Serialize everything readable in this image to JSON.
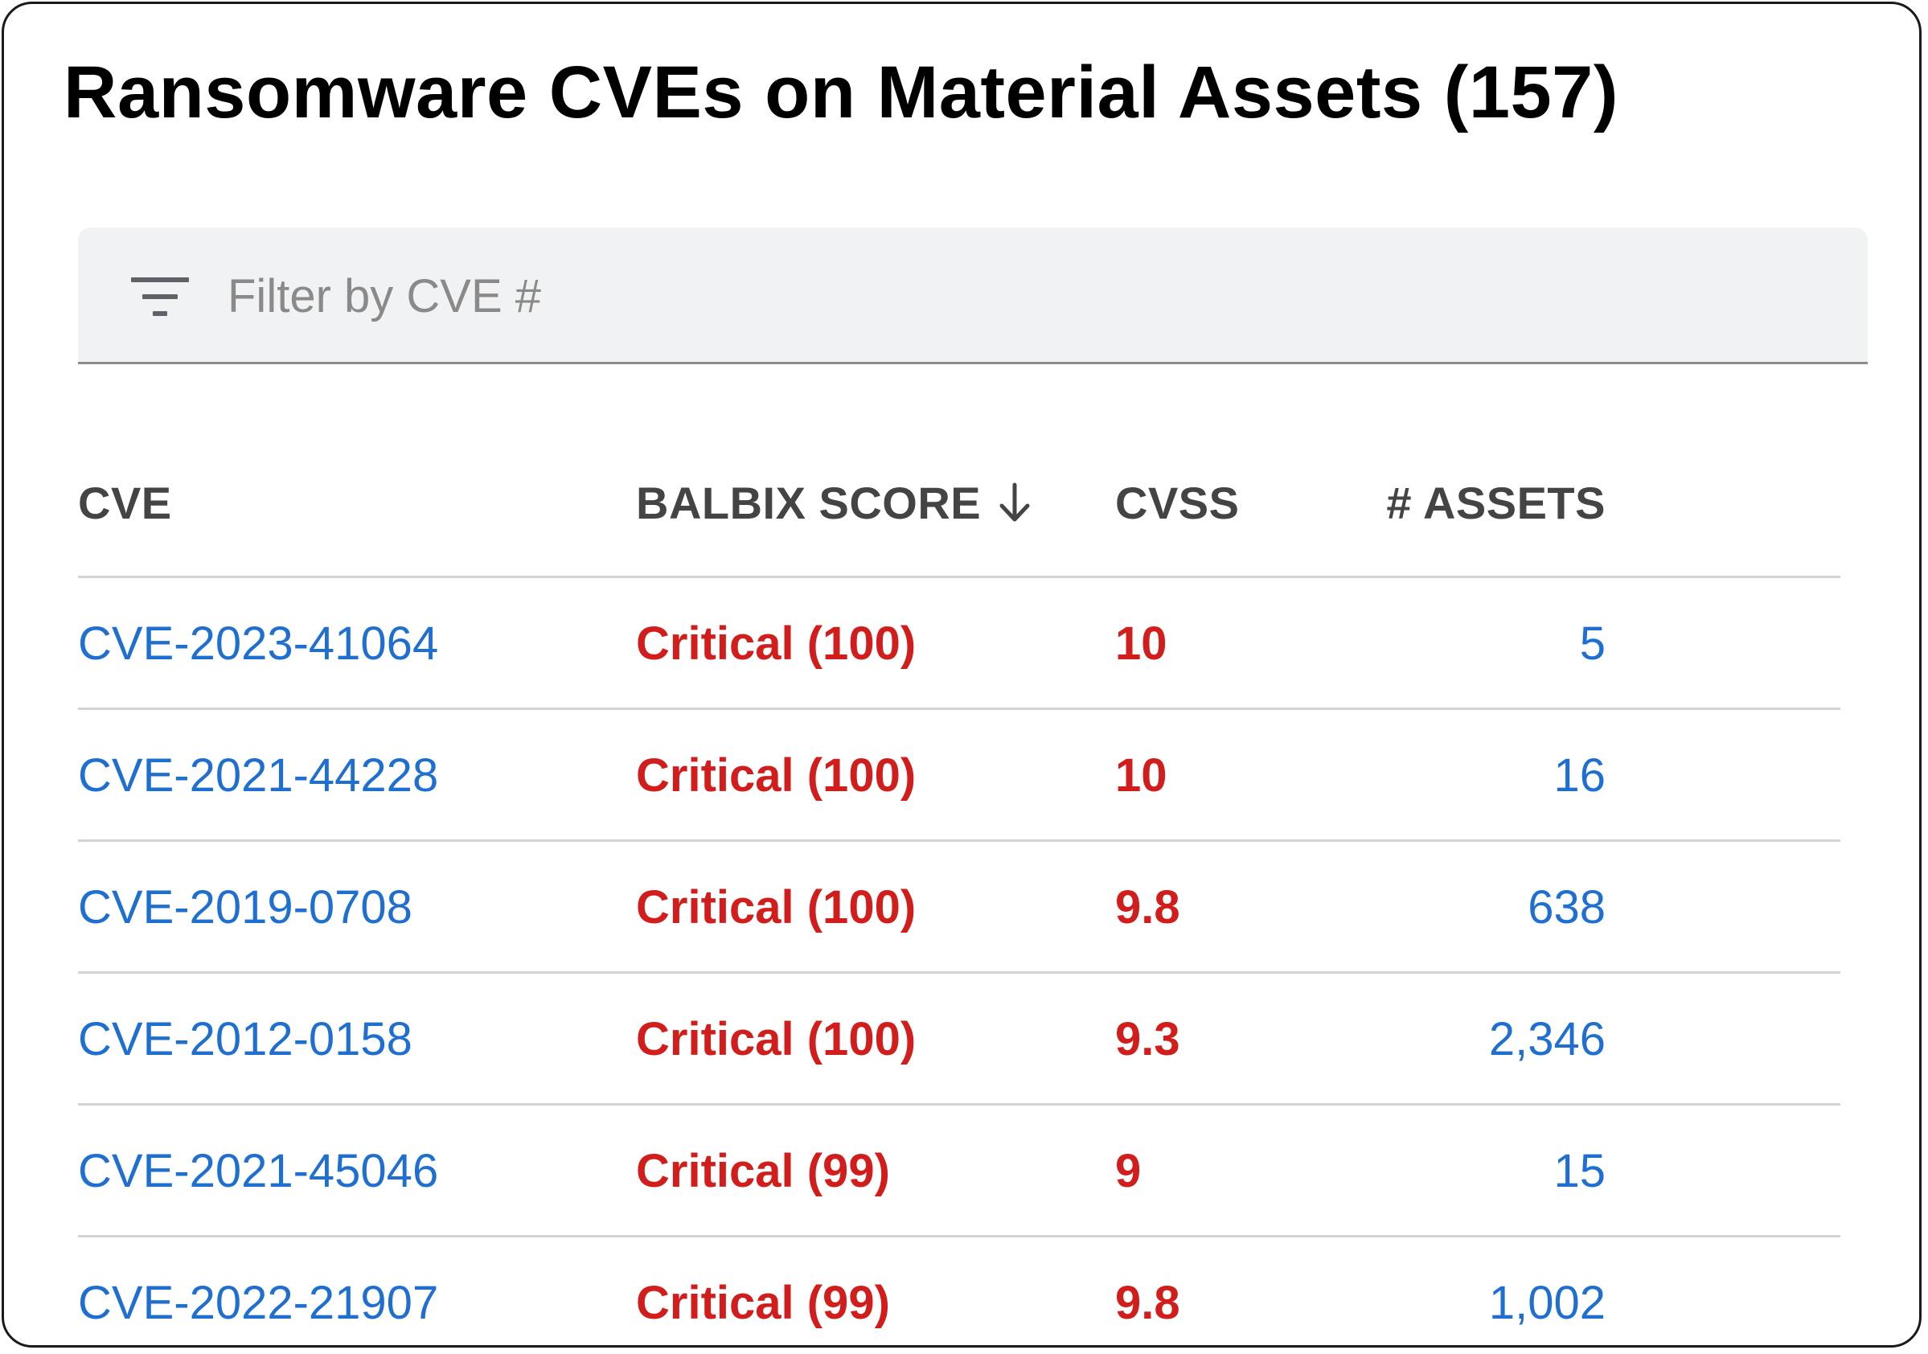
{
  "title": "Ransomware CVEs on Material Assets (157)",
  "filter": {
    "placeholder": "Filter by CVE #",
    "value": "",
    "icon": "filter-icon"
  },
  "colors": {
    "link": "#1f6fd1",
    "critical": "#d21d1d",
    "header_text": "#444444",
    "filter_bg": "#f1f2f3"
  },
  "table": {
    "columns": {
      "cve": "CVE",
      "score": "BALBIX SCORE",
      "cvss": "CVSS",
      "assets": "# ASSETS"
    },
    "sort": {
      "column": "score",
      "direction": "descending",
      "icon": "arrow-down-icon"
    },
    "rows": [
      {
        "cve": "CVE-2023-41064",
        "score": "Critical (100)",
        "cvss": "10",
        "assets": "5"
      },
      {
        "cve": "CVE-2021-44228",
        "score": "Critical (100)",
        "cvss": "10",
        "assets": "16"
      },
      {
        "cve": "CVE-2019-0708",
        "score": "Critical (100)",
        "cvss": "9.8",
        "assets": "638"
      },
      {
        "cve": "CVE-2012-0158",
        "score": "Critical (100)",
        "cvss": "9.3",
        "assets": "2,346"
      },
      {
        "cve": "CVE-2021-45046",
        "score": "Critical (99)",
        "cvss": "9",
        "assets": "15"
      },
      {
        "cve": "CVE-2022-21907",
        "score": "Critical (99)",
        "cvss": "9.8",
        "assets": "1,002"
      }
    ]
  }
}
